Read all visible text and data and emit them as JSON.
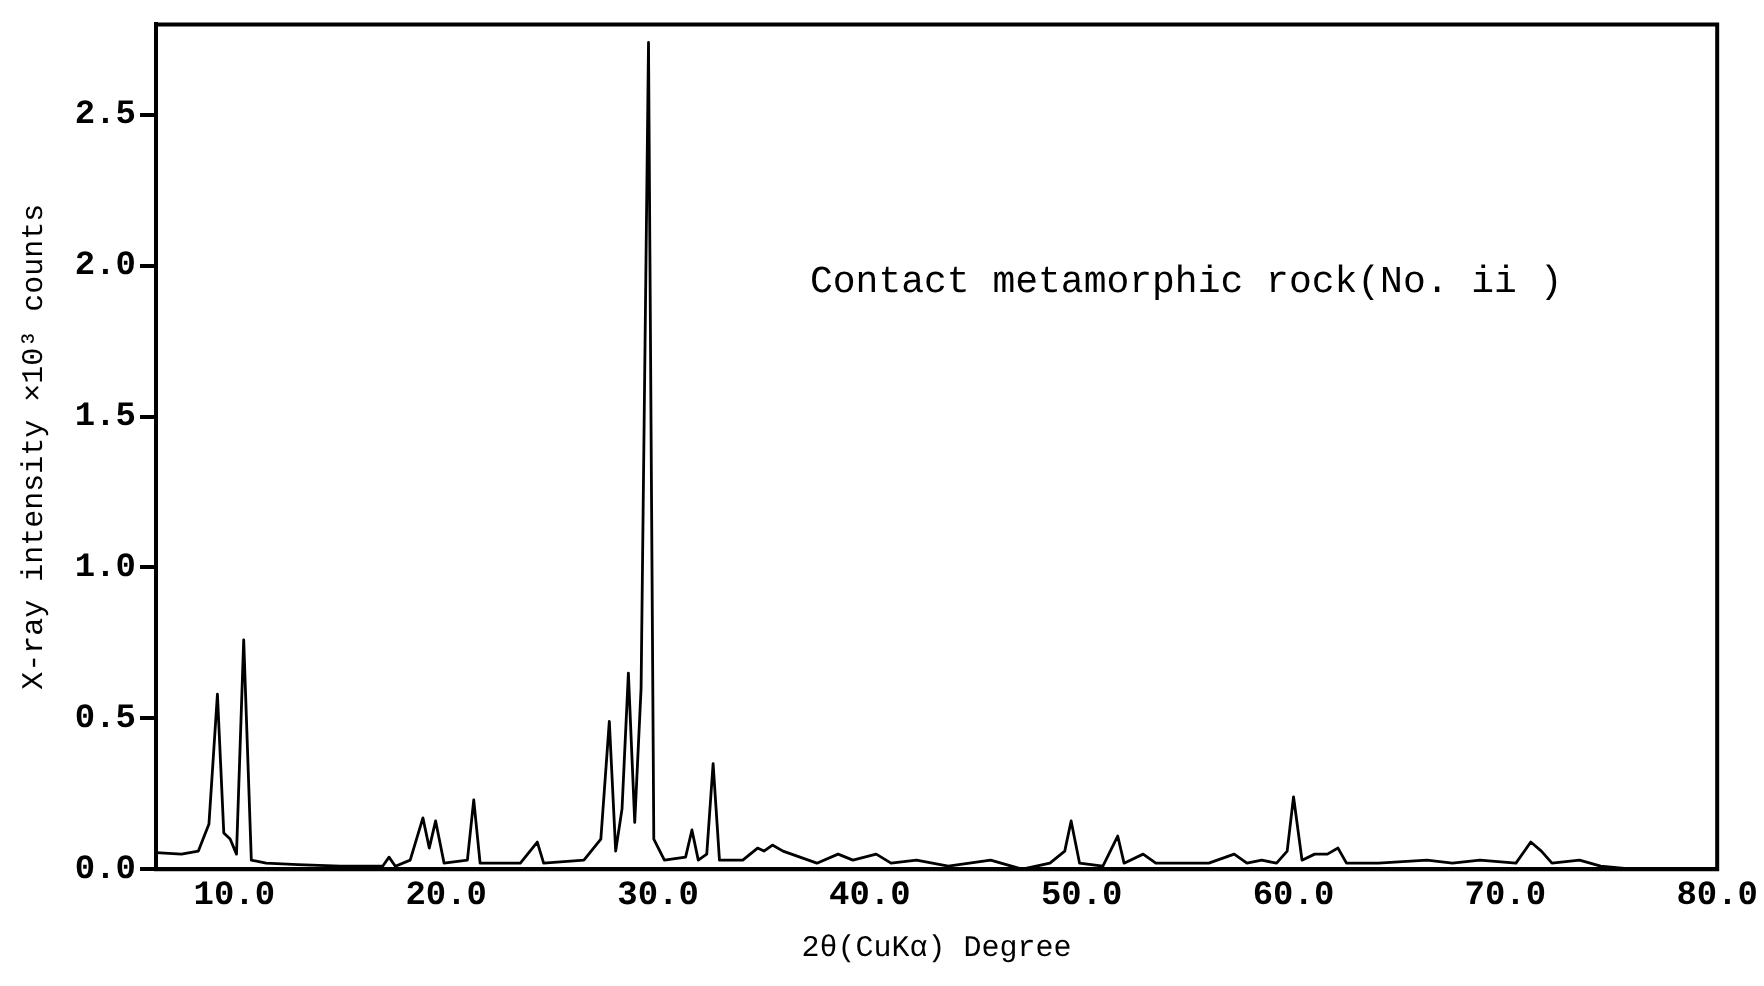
{
  "chart_data": {
    "type": "line",
    "xlabel": "2θ(CuKα) Degree",
    "ylabel": "X-ray intensity ×10³ counts",
    "annotations": [
      "Contact metamorphic rock(No. ii )"
    ],
    "xlim": [
      6.3,
      80
    ],
    "ylim": [
      0,
      2.8
    ],
    "xticks": [
      {
        "value": 10,
        "label": "10.0"
      },
      {
        "value": 20,
        "label": "20.0"
      },
      {
        "value": 30,
        "label": "30.0"
      },
      {
        "value": 40,
        "label": "40.0"
      },
      {
        "value": 50,
        "label": "50.0"
      },
      {
        "value": 60,
        "label": "60.0"
      },
      {
        "value": 70,
        "label": "70.0"
      },
      {
        "value": 80,
        "label": "80.0"
      }
    ],
    "yticks": [
      {
        "value": 0,
        "label": "0.0"
      },
      {
        "value": 0.5,
        "label": "0.5"
      },
      {
        "value": 1,
        "label": "1.0"
      },
      {
        "value": 1.5,
        "label": "1.5"
      },
      {
        "value": 2,
        "label": "2.0"
      },
      {
        "value": 2.5,
        "label": "2.5"
      }
    ],
    "grid": false,
    "legend": false,
    "marker": "none",
    "line_style": "solid",
    "series": [
      {
        "color": "#000000",
        "x": [
          6.3,
          7.5,
          8.3,
          8.8,
          9.2,
          9.5,
          9.8,
          10.1,
          10.44,
          10.8,
          11.5,
          13,
          15,
          17,
          17.3,
          17.6,
          18.3,
          18.9,
          19.2,
          19.5,
          19.9,
          21.0,
          21.3,
          21.6,
          23.5,
          24.3,
          24.6,
          26.5,
          27.3,
          27.7,
          28.0,
          28.3,
          28.6,
          28.9,
          29.2,
          29.55,
          29.8,
          30.3,
          31.3,
          31.6,
          31.9,
          32.3,
          32.6,
          32.9,
          34.0,
          34.7,
          35.0,
          35.4,
          35.9,
          37.5,
          38.5,
          39.2,
          40.3,
          41.0,
          42.2,
          43.7,
          45.7,
          47.2,
          48.5,
          49.2,
          49.5,
          49.9,
          51.0,
          51.7,
          52.0,
          52.9,
          53.5,
          56.0,
          57.2,
          57.8,
          58.5,
          59.2,
          59.7,
          60.0,
          60.4,
          61.0,
          61.6,
          62.1,
          62.5,
          64.0,
          66.3,
          67.5,
          68.8,
          70.5,
          71.2,
          71.7,
          72.2,
          73.5,
          74.5,
          76,
          78,
          80
        ],
        "values": [
          0.055,
          0.05,
          0.06,
          0.15,
          0.58,
          0.12,
          0.1,
          0.05,
          0.76,
          0.03,
          0.02,
          0.015,
          0.01,
          0.01,
          0.04,
          0.01,
          0.03,
          0.17,
          0.07,
          0.16,
          0.02,
          0.03,
          0.23,
          0.02,
          0.02,
          0.09,
          0.02,
          0.03,
          0.1,
          0.49,
          0.06,
          0.2,
          0.65,
          0.155,
          0.6,
          2.74,
          0.1,
          0.03,
          0.04,
          0.13,
          0.03,
          0.05,
          0.35,
          0.03,
          0.03,
          0.07,
          0.06,
          0.08,
          0.06,
          0.02,
          0.05,
          0.03,
          0.05,
          0.02,
          0.03,
          0.01,
          0.03,
          0.0,
          0.02,
          0.06,
          0.16,
          0.02,
          0.01,
          0.11,
          0.02,
          0.05,
          0.02,
          0.02,
          0.05,
          0.02,
          0.03,
          0.02,
          0.06,
          0.24,
          0.03,
          0.05,
          0.05,
          0.07,
          0.02,
          0.02,
          0.03,
          0.02,
          0.03,
          0.02,
          0.09,
          0.06,
          0.02,
          0.03,
          0.01,
          0.0,
          0.0,
          0.0
        ]
      }
    ]
  }
}
